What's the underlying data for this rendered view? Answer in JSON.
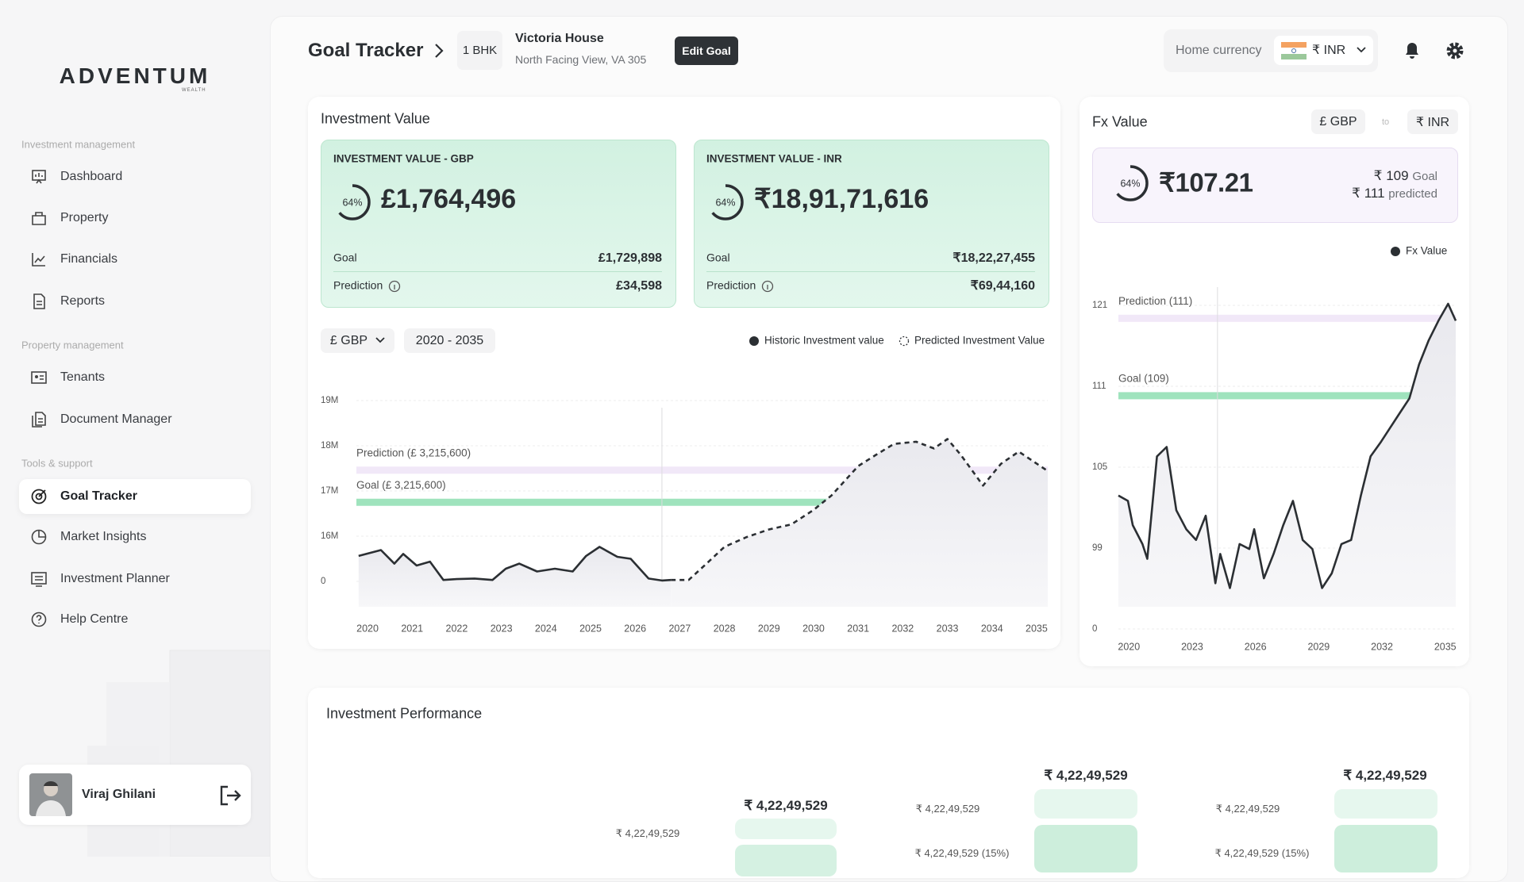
{
  "sidebar": {
    "logo": "ADVENTUM",
    "logo_sub": "WEALTH",
    "sections": [
      {
        "label": "Investment management",
        "items": [
          "Dashboard",
          "Property",
          "Financials",
          "Reports"
        ]
      },
      {
        "label": "Property management",
        "items": [
          "Tenants",
          "Document Manager"
        ]
      },
      {
        "label": "Tools & support",
        "items": [
          "Goal Tracker",
          "Market Insights",
          "Investment Planner",
          "Help Centre"
        ]
      }
    ],
    "user": "Viraj Ghilani"
  },
  "header": {
    "title": "Goal Tracker",
    "unit": "1 BHK",
    "property": "Victoria House",
    "address": "North Facing View, VA 305",
    "edit": "Edit Goal",
    "currency_label": "Home currency",
    "currency": "₹ INR"
  },
  "investment_value": {
    "title": "Investment Value",
    "currency_select": "£ GBP",
    "range": "2020 - 2035",
    "cards": [
      {
        "title": "INVESTMENT VALUE - GBP",
        "progress": 64,
        "progress_label": "64%",
        "value": "£1,764,496",
        "goal_label": "Goal",
        "goal": "£1,729,898",
        "prediction_label": "Prediction",
        "prediction": "£34,598"
      },
      {
        "title": "INVESTMENT VALUE - INR",
        "progress": 64,
        "progress_label": "64%",
        "value": "₹18,91,71,616",
        "goal_label": "Goal",
        "goal": "₹18,22,27,455",
        "prediction_label": "Prediction",
        "prediction": "₹69,44,160"
      }
    ]
  },
  "fx": {
    "title": "Fx Value",
    "from": "£ GBP",
    "to_word": "to",
    "to": "₹ INR",
    "progress": 64,
    "progress_label": "64%",
    "value": "₹107.21",
    "goal_value": "₹ 109",
    "goal_word": "Goal",
    "predicted_value": "₹ 111",
    "predicted_word": "predicted"
  },
  "chart_data": [
    {
      "type": "line",
      "xlim": [
        2019.75,
        2035.25
      ],
      "xticks": [
        2020,
        2021,
        2022,
        2023,
        2024,
        2025,
        2026,
        2027,
        2028,
        2029,
        2030,
        2031,
        2032,
        2033,
        2034,
        2035
      ],
      "ylim": [
        0,
        19
      ],
      "yticks": [
        {
          "value": 19,
          "label": "19M"
        },
        {
          "value": 18,
          "label": "18M"
        },
        {
          "value": 17,
          "label": "17M"
        },
        {
          "value": 16,
          "label": "16M"
        },
        0
      ],
      "today_x": 2026.6,
      "annotations": [
        {
          "label": "Prediction (£ 3,215,600)",
          "value": 17.46,
          "color": "#f1e8f8"
        },
        {
          "label": "Goal (£ 3,215,600)",
          "value": 16.75,
          "color": "#9fe3bd"
        }
      ],
      "series": [
        {
          "name": "Historic Investment value",
          "color": "#2b2f33",
          "style": "solid",
          "x": [
            2019.8,
            2020.3,
            2020.6,
            2020.8,
            2021.1,
            2021.4,
            2021.7,
            2022.0,
            2022.4,
            2022.8,
            2023.1,
            2023.4,
            2023.8,
            2024.2,
            2024.6,
            2024.9,
            2025.2,
            2025.6,
            2025.9,
            2026.3,
            2026.6,
            2026.8
          ],
          "values": [
            9.0,
            11.1,
            6.3,
            9.7,
            5.6,
            7.0,
            0.5,
            0.8,
            1.0,
            0.5,
            4.5,
            6.3,
            3.5,
            4.5,
            3.5,
            9.0,
            12.2,
            8.7,
            8.0,
            1.0,
            0.3,
            0.5
          ]
        },
        {
          "name": "Predicted Investment Value",
          "color": "#2b2f33",
          "style": "dashed",
          "x": [
            2026.8,
            2027.2,
            2027.6,
            2028.0,
            2028.5,
            2029.0,
            2029.5,
            2030.0,
            2030.4,
            2031.0,
            2031.4,
            2031.8,
            2032.3,
            2032.7,
            2033.0,
            2033.3,
            2033.8,
            2034.2,
            2034.6,
            2035.25
          ],
          "values": [
            0.5,
            0.5,
            6.3,
            12.2,
            15.7,
            16.15,
            16.26,
            16.58,
            16.9,
            17.55,
            17.8,
            18.04,
            18.09,
            17.94,
            18.15,
            17.8,
            17.12,
            17.6,
            17.87,
            17.44
          ]
        }
      ]
    },
    {
      "type": "line",
      "xlim": [
        2019.5,
        2035.5
      ],
      "xticks": [
        2020,
        2023,
        2026,
        2029,
        2032,
        2035
      ],
      "ylim": [
        0,
        121
      ],
      "yticks": [
        121,
        111,
        105,
        99,
        0
      ],
      "today_x": 2024.2,
      "annotations": [
        {
          "label": "Prediction (111)",
          "value": 119.4,
          "color": "#f1e8f8"
        },
        {
          "label": "Goal (109)",
          "value": 110.3,
          "color": "#9fe3bd"
        }
      ],
      "series": [
        {
          "name": "Fx Value",
          "color": "#2b2f33",
          "style": "solid",
          "x": [
            2019.5,
            2019.95,
            2020.18,
            2020.64,
            2020.87,
            2021.33,
            2021.79,
            2022.25,
            2022.72,
            2023.18,
            2023.64,
            2024.1,
            2024.33,
            2024.79,
            2025.25,
            2025.71,
            2025.94,
            2026.4,
            2026.86,
            2027.32,
            2027.78,
            2028.24,
            2028.7,
            2029.16,
            2029.62,
            2030.08,
            2030.54,
            2031.0,
            2031.46,
            2031.92,
            2032.38,
            2032.84,
            2033.3,
            2033.76,
            2034.22,
            2034.68,
            2035.14,
            2035.5
          ],
          "values": [
            102.9,
            102.5,
            100.7,
            99.3,
            85.9,
            105.8,
            106.5,
            101.8,
            100.4,
            99.6,
            101.4,
            56.0,
            91.8,
            50.1,
            99.3,
            97.8,
            100.4,
            62.0,
            91.8,
            100.7,
            102.5,
            99.6,
            97.8,
            50.1,
            68.0,
            99.3,
            99.6,
            102.9,
            105.8,
            106.8,
            107.9,
            109.0,
            110.1,
            113.7,
            116.7,
            119.1,
            121.2,
            119.1
          ]
        }
      ]
    }
  ],
  "performance": {
    "title": "Investment Performance",
    "groups": [
      {
        "top": "₹ 4,22,49,529",
        "side": "₹ 4,22,49,529"
      },
      {
        "top": "₹ 4,22,49,529",
        "side": "₹ 4,22,49,529",
        "side2": "₹ 4,22,49,529 (15%)"
      },
      {
        "top": "₹ 4,22,49,529",
        "side": "₹ 4,22,49,529",
        "side2": "₹ 4,22,49,529 (15%)"
      }
    ]
  }
}
